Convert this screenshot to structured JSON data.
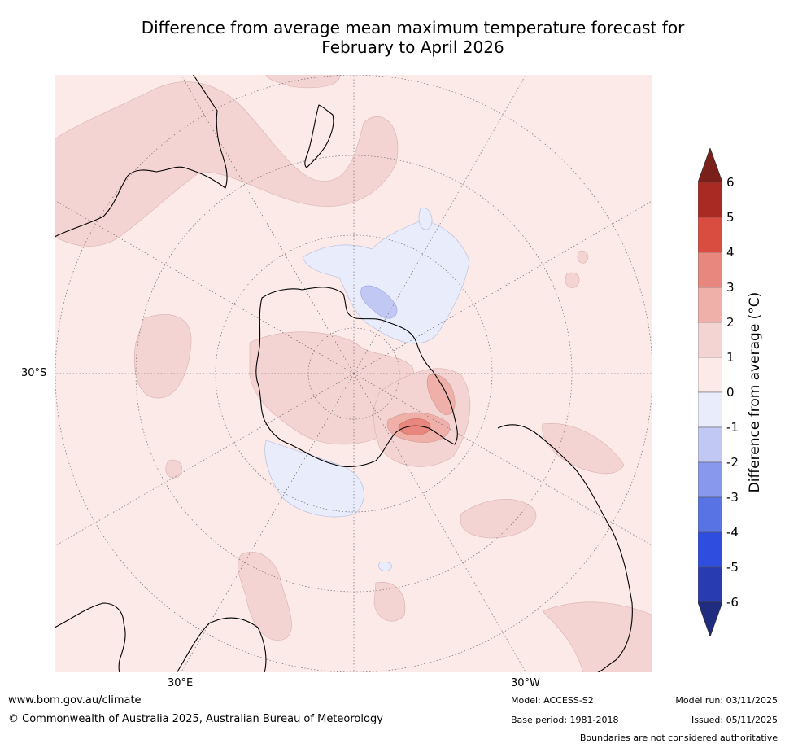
{
  "title": {
    "line1": "Difference from average mean maximum temperature forecast for",
    "line2": "February to April 2026"
  },
  "map": {
    "lat_label": "30°S",
    "lon_labels": [
      "30°E",
      "30°W"
    ]
  },
  "colorbar": {
    "label": "Difference from average (°C)",
    "ticks": [
      "6",
      "5",
      "4",
      "3",
      "2",
      "1",
      "0",
      "-1",
      "-2",
      "-3",
      "-4",
      "-5",
      "-6"
    ],
    "colors": [
      "#a92a22",
      "#d94c40",
      "#e8877d",
      "#eeb0a9",
      "#f4d4d2",
      "#fbeae8",
      "#e9ecfb",
      "#c1c8f3",
      "#8898ec",
      "#5873e3",
      "#2f4ee0",
      "#283bb0"
    ],
    "over_color": "#7a1f19",
    "under_color": "#1f2c80"
  },
  "footer": {
    "website": "www.bom.gov.au/climate",
    "copyright": "© Commonwealth of Australia 2025, Australian Bureau of Meteorology",
    "model": "Model: ACCESS-S2",
    "base_period": "Base period: 1981-2018",
    "model_run": "Model run: 03/11/2025",
    "issued": "Issued: 05/11/2025",
    "disclaimer": "Boundaries are not considered authoritative"
  }
}
